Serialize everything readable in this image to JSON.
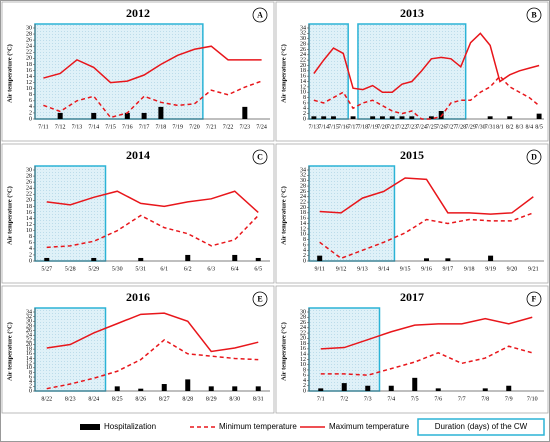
{
  "chart_data": [
    {
      "type": "combo",
      "title": "2012",
      "panel_label": "A",
      "ylabel": "Air temperature (°C)",
      "categories": [
        "7/11",
        "7/12",
        "7/13",
        "7/14",
        "7/15",
        "7/16",
        "7/17",
        "7/18",
        "7/19",
        "7/20",
        "7/21",
        "7/22",
        "7/23",
        "7/24"
      ],
      "ylim": [
        0,
        30
      ],
      "yticks": [
        0,
        2,
        4,
        6,
        8,
        10,
        12,
        14,
        16,
        18,
        20,
        22,
        24,
        26,
        28,
        30
      ],
      "shaded_regions": [
        {
          "start": "7/11",
          "end": "7/20"
        }
      ],
      "series": [
        {
          "name": "Hospitalization",
          "kind": "bar",
          "color": "#000000",
          "values": [
            0,
            2,
            0,
            2,
            0,
            2,
            2,
            4,
            0,
            0,
            0,
            0,
            4,
            0
          ]
        },
        {
          "name": "Minimum temperature",
          "kind": "dashed",
          "color": "#e8161b",
          "values": [
            4.5,
            2.5,
            6,
            7.5,
            0.5,
            2,
            7.5,
            5.5,
            4.5,
            5,
            9.5,
            8,
            10.5,
            12.5
          ]
        },
        {
          "name": "Maximum temperature",
          "kind": "solid",
          "color": "#e8161b",
          "values": [
            13.5,
            15,
            19.5,
            17,
            12,
            12.5,
            14.5,
            18,
            21,
            23,
            24,
            19.5,
            19.5,
            19.5
          ]
        }
      ]
    },
    {
      "type": "combo",
      "title": "2013",
      "panel_label": "B",
      "ylabel": "Air temperature (°C)",
      "categories": [
        "7/13",
        "7/14",
        "7/15",
        "7/16",
        "7/17",
        "7/18",
        "7/19",
        "7/20",
        "7/21",
        "7/22",
        "7/23",
        "7/24",
        "7/25",
        "7/26",
        "7/27",
        "7/28",
        "7/29",
        "7/30",
        "7/31",
        "8/1",
        "8/2",
        "8/3",
        "8/4",
        "8/5"
      ],
      "ylim": [
        0,
        34
      ],
      "yticks": [
        0,
        2,
        4,
        6,
        8,
        10,
        12,
        14,
        16,
        18,
        20,
        22,
        24,
        26,
        28,
        30,
        32,
        34
      ],
      "shaded_regions": [
        {
          "start": "7/13",
          "end": "7/16"
        },
        {
          "start": "7/18",
          "end": "7/28"
        }
      ],
      "series": [
        {
          "name": "Hospitalization",
          "kind": "bar",
          "color": "#000000",
          "values": [
            1,
            1,
            1,
            0,
            1,
            0,
            1,
            1,
            1,
            1,
            1,
            0,
            1,
            3,
            0,
            0,
            0,
            0,
            1,
            0,
            1,
            0,
            0,
            2
          ]
        },
        {
          "name": "Minimum temperature",
          "kind": "dashed",
          "color": "#e8161b",
          "values": [
            7,
            6,
            8,
            10,
            4,
            6,
            7,
            5,
            3,
            2,
            3,
            0,
            0,
            1,
            6,
            7,
            7,
            10,
            12,
            16,
            12,
            10,
            8,
            5
          ]
        },
        {
          "name": "Maximum temperature",
          "kind": "solid",
          "color": "#e8161b",
          "values": [
            17,
            22,
            26.5,
            24.5,
            11.5,
            11,
            12.5,
            10,
            10,
            13,
            14,
            18,
            22.5,
            23,
            22.5,
            19.5,
            28.5,
            32,
            27.5,
            14,
            16.5,
            18,
            19,
            20
          ]
        }
      ]
    },
    {
      "type": "combo",
      "title": "2014",
      "panel_label": "C",
      "ylabel": "Air temperature (°C)",
      "categories": [
        "5/27",
        "5/28",
        "5/29",
        "5/30",
        "5/31",
        "6/1",
        "6/2",
        "6/3",
        "6/4",
        "6/5"
      ],
      "ylim": [
        0,
        30
      ],
      "yticks": [
        0,
        2,
        4,
        6,
        8,
        10,
        12,
        14,
        16,
        18,
        20,
        22,
        24,
        26,
        28,
        30
      ],
      "shaded_regions": [
        {
          "start": "5/27",
          "end": "5/29"
        }
      ],
      "series": [
        {
          "name": "Hospitalization",
          "kind": "bar",
          "color": "#000000",
          "values": [
            1,
            0,
            1,
            0,
            1,
            0,
            2,
            0,
            2,
            1
          ]
        },
        {
          "name": "Minimum temperature",
          "kind": "dashed",
          "color": "#e8161b",
          "values": [
            4.5,
            5,
            6.5,
            10,
            15,
            11,
            9,
            5,
            7,
            15
          ]
        },
        {
          "name": "Maximum temperature",
          "kind": "solid",
          "color": "#e8161b",
          "values": [
            19.5,
            18.5,
            21,
            23,
            19,
            18,
            19.5,
            20.5,
            23,
            16
          ]
        }
      ]
    },
    {
      "type": "combo",
      "title": "2015",
      "panel_label": "D",
      "ylabel": "Air temperature (°C)",
      "categories": [
        "9/11",
        "9/12",
        "9/13",
        "9/14",
        "9/15",
        "9/16",
        "9/17",
        "9/18",
        "9/19",
        "9/20",
        "9/21"
      ],
      "ylim": [
        0,
        34
      ],
      "yticks": [
        0,
        2,
        4,
        6,
        8,
        10,
        12,
        14,
        16,
        18,
        20,
        22,
        24,
        26,
        28,
        30,
        32,
        34
      ],
      "shaded_regions": [
        {
          "start": "9/11",
          "end": "9/14"
        }
      ],
      "series": [
        {
          "name": "Hospitalization",
          "kind": "bar",
          "color": "#000000",
          "values": [
            2,
            0,
            0,
            0,
            0,
            1,
            1,
            0,
            2,
            0,
            0
          ]
        },
        {
          "name": "Minimum temperature",
          "kind": "dashed",
          "color": "#e8161b",
          "values": [
            7,
            1,
            4,
            7,
            10.5,
            15.5,
            14,
            15.5,
            15,
            15,
            18
          ]
        },
        {
          "name": "Maximum temperature",
          "kind": "solid",
          "color": "#e8161b",
          "values": [
            18.5,
            18,
            23.5,
            26,
            31,
            30.5,
            18,
            18,
            17.5,
            18,
            24
          ]
        }
      ]
    },
    {
      "type": "combo",
      "title": "2016",
      "panel_label": "E",
      "ylabel": "Air temperature (°C)",
      "categories": [
        "8/22",
        "8/23",
        "8/24",
        "8/25",
        "8/26",
        "8/27",
        "8/28",
        "8/29",
        "8/30",
        "8/31"
      ],
      "ylim": [
        0,
        34
      ],
      "yticks": [
        0,
        2,
        4,
        6,
        8,
        10,
        12,
        14,
        16,
        18,
        20,
        22,
        24,
        26,
        28,
        30,
        32,
        34
      ],
      "shaded_regions": [
        {
          "start": "8/22",
          "end": "8/24"
        }
      ],
      "series": [
        {
          "name": "Hospitalization",
          "kind": "bar",
          "color": "#000000",
          "values": [
            0,
            0,
            0,
            2,
            1,
            3,
            5,
            2,
            2,
            2
          ]
        },
        {
          "name": "Minimum temperature",
          "kind": "dashed",
          "color": "#e8161b",
          "values": [
            1,
            3,
            5.5,
            8.5,
            13.5,
            22,
            16,
            15,
            14,
            13.5
          ]
        },
        {
          "name": "Maximum temperature",
          "kind": "solid",
          "color": "#e8161b",
          "values": [
            18.5,
            20,
            25,
            29,
            33,
            33.5,
            30,
            17,
            18.5,
            21
          ]
        }
      ]
    },
    {
      "type": "combo",
      "title": "2017",
      "panel_label": "F",
      "ylabel": "Air temperature (°C)",
      "categories": [
        "7/1",
        "7/2",
        "7/3",
        "7/4",
        "7/5",
        "7/6",
        "7/7",
        "7/8",
        "7/9",
        "7/10"
      ],
      "ylim": [
        0,
        30
      ],
      "yticks": [
        0,
        2,
        4,
        6,
        8,
        10,
        12,
        14,
        16,
        18,
        20,
        22,
        24,
        26,
        28,
        30
      ],
      "shaded_regions": [
        {
          "start": "7/1",
          "end": "7/3"
        }
      ],
      "series": [
        {
          "name": "Hospitalization",
          "kind": "bar",
          "color": "#000000",
          "values": [
            1,
            3,
            2,
            2,
            5,
            1,
            0,
            1,
            2,
            0
          ]
        },
        {
          "name": "Minimum temperature",
          "kind": "dashed",
          "color": "#e8161b",
          "values": [
            6.5,
            6.5,
            6,
            8.5,
            11,
            14.5,
            10.5,
            12.5,
            17,
            14.5
          ]
        },
        {
          "name": "Maximum temperature",
          "kind": "solid",
          "color": "#e8161b",
          "values": [
            16,
            16.5,
            19.5,
            22.5,
            25,
            25.5,
            25.5,
            27.5,
            25.5,
            28
          ]
        }
      ]
    }
  ],
  "legend": {
    "shaded_label": "Duration (days) of the CW"
  }
}
